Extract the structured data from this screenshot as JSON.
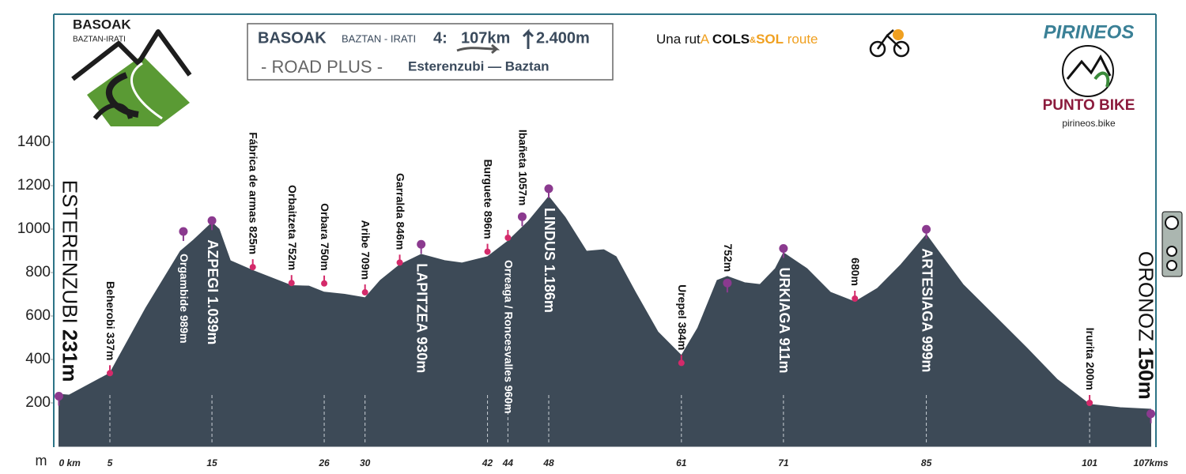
{
  "header": {
    "logo_title": "BASOAK",
    "logo_subtitle": "BAZTAN-IRATI",
    "route_name": "BASOAK",
    "route_region": "BAZTAN - IRATI",
    "route_number": "4:",
    "distance": "107km",
    "climb": "2.400m",
    "edition": "- ROAD PLUS -",
    "from_to": "Esterenzubi — Baztan",
    "tagline": [
      "Una rut",
      "A",
      "COLS",
      "&",
      "SOL",
      "route"
    ],
    "brand": "PIRINEOS",
    "shop": "PUNTO BIKE",
    "website": "pirineos.bike"
  },
  "chart_data": {
    "type": "area",
    "y_label": "m",
    "color": "#3d4a57",
    "x": [
      0,
      1,
      5,
      8.5,
      11.9,
      13.2,
      15,
      15.7,
      16.8,
      19,
      22.8,
      24.5,
      26,
      28,
      30,
      31.5,
      33.4,
      35.5,
      37.8,
      39.5,
      42,
      44,
      46,
      48,
      49.6,
      51.7,
      53.4,
      54.6,
      56.5,
      58.7,
      61,
      62.6,
      64.5,
      65.5,
      67.2,
      68.7,
      70.2,
      71,
      73.3,
      75.6,
      78,
      80.2,
      82.5,
      85,
      86.3,
      88.6,
      91.7,
      94.8,
      97.8,
      101,
      104,
      107
    ],
    "values": [
      240,
      236,
      337,
      636,
      898,
      950,
      1030,
      1000,
      855,
      810,
      740,
      738,
      710,
      700,
      684,
      764,
      836,
      884,
      855,
      844,
      873,
      945,
      1036,
      1150,
      1055,
      898,
      905,
      873,
      709,
      527,
      418,
      545,
      764,
      782,
      753,
      745,
      818,
      891,
      818,
      709,
      665,
      727,
      836,
      975,
      891,
      745,
      600,
      455,
      309,
      193,
      178,
      171
    ],
    "xlim": [
      -0.5,
      107.5
    ],
    "ylim": [
      0,
      1400
    ],
    "yticks": [
      200,
      400,
      600,
      800,
      1000,
      1200,
      1400
    ],
    "xticks": [
      {
        "value": 0,
        "label": "0 km"
      },
      5,
      15,
      26,
      30,
      42,
      44,
      48,
      61,
      71,
      85,
      101,
      {
        "value": 107,
        "label": "107kms"
      }
    ],
    "annotations": [
      {
        "name": "ESTERENZUBI",
        "height": "231m",
        "km": 0,
        "elevation": 231,
        "color": "#8b3a8f"
      },
      {
        "name": "Beherobi",
        "height": "337m",
        "km": 5,
        "elevation": 337,
        "color": "#d42a6a"
      },
      {
        "name": "Orgambide",
        "height": "989m",
        "km": 12.2,
        "elevation": 989,
        "color": "#8b3a8f"
      },
      {
        "name": "AZPEGI",
        "height": "1.039m",
        "km": 15,
        "elevation": 1039,
        "color": "#8b3a8f"
      },
      {
        "name": "Fábrica de armas",
        "height": "825m",
        "km": 19,
        "elevation": 825,
        "color": "#d42a6a"
      },
      {
        "name": "Orbaitzeta",
        "height": "752m",
        "km": 22.8,
        "elevation": 752,
        "color": "#d42a6a"
      },
      {
        "name": "Orbara",
        "height": "750m",
        "km": 26,
        "elevation": 750,
        "color": "#d42a6a"
      },
      {
        "name": "Aribe",
        "height": "709m",
        "km": 30,
        "elevation": 709,
        "color": "#d42a6a"
      },
      {
        "name": "Garralda",
        "height": "846m",
        "km": 33.4,
        "elevation": 846,
        "color": "#d42a6a"
      },
      {
        "name": "LAPITZEA",
        "height": "930m",
        "km": 35.5,
        "elevation": 930,
        "color": "#8b3a8f"
      },
      {
        "name": "Burguete",
        "height": "896m",
        "km": 42,
        "elevation": 896,
        "color": "#d42a6a"
      },
      {
        "name": "Orreaga / Roncesvalles",
        "height": "960m",
        "km": 44,
        "elevation": 960,
        "color": "#d42a6a"
      },
      {
        "name": "Ibañeta",
        "height": "1057m",
        "km": 45.4,
        "elevation": 1057,
        "color": "#8b3a8f"
      },
      {
        "name": "LINDUS",
        "height": "1.186m",
        "km": 48,
        "elevation": 1186,
        "color": "#8b3a8f"
      },
      {
        "name": "Urepel",
        "height": "384m",
        "km": 61,
        "elevation": 384,
        "color": "#d42a6a"
      },
      {
        "height": "752m",
        "km": 65.5,
        "elevation": 752,
        "color": "#8b3a8f"
      },
      {
        "name": "URKIAGA",
        "height": "911m",
        "km": 71,
        "elevation": 911,
        "color": "#8b3a8f"
      },
      {
        "height": "680m",
        "km": 78,
        "elevation": 680,
        "color": "#d42a6a"
      },
      {
        "name": "ARTESIAGA",
        "height": "999m",
        "km": 85,
        "elevation": 999,
        "color": "#8b3a8f"
      },
      {
        "name": "Irurita",
        "height": "200m",
        "km": 101,
        "elevation": 200,
        "color": "#d42a6a"
      },
      {
        "name": "ORONOZ",
        "height": "150m",
        "km": 107,
        "elevation": 150,
        "color": "#8b3a8f"
      }
    ]
  }
}
